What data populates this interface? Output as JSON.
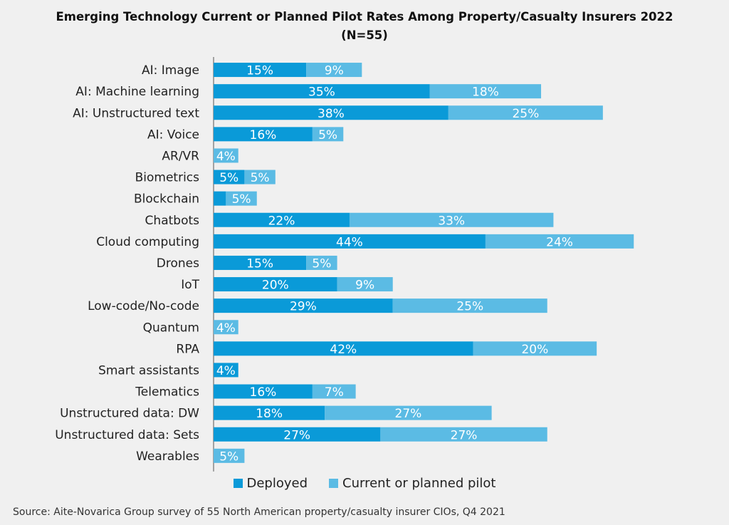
{
  "chart_data": {
    "type": "bar",
    "orientation": "horizontal",
    "stacked": true,
    "title": "Emerging Technology Current or Planned Pilot Rates Among Property/Casualty Insurers 2022",
    "subtitle": "(N=55)",
    "xlabel": "",
    "ylabel": "",
    "xlim": [
      0,
      70
    ],
    "grid": false,
    "legend_position": "bottom",
    "categories": [
      "AI: Image",
      "AI: Machine learning",
      "AI: Unstructured text",
      "AI: Voice",
      "AR/VR",
      "Biometrics",
      "Blockchain",
      "Chatbots",
      "Cloud computing",
      "Drones",
      "IoT",
      "Low-code/No-code",
      "Quantum",
      "RPA",
      "Smart assistants",
      "Telematics",
      "Unstructured data: DW",
      "Unstructured data: Sets",
      "Wearables"
    ],
    "series": [
      {
        "name": "Deployed",
        "color": "#0a9ad8",
        "values": [
          15,
          35,
          38,
          16,
          0,
          5,
          2,
          22,
          44,
          15,
          20,
          29,
          0,
          42,
          4,
          16,
          18,
          27,
          0
        ],
        "labels": [
          "15%",
          "35%",
          "38%",
          "16%",
          "",
          "5%",
          "",
          "22%",
          "44%",
          "15%",
          "20%",
          "29%",
          "",
          "42%",
          "4%",
          "16%",
          "18%",
          "27%",
          ""
        ]
      },
      {
        "name": "Current or planned pilot",
        "color": "#5bbbe4",
        "values": [
          9,
          18,
          25,
          5,
          4,
          5,
          5,
          33,
          24,
          5,
          9,
          25,
          4,
          20,
          0,
          7,
          27,
          27,
          5
        ],
        "labels": [
          "9%",
          "18%",
          "25%",
          "5%",
          "4%",
          "5%",
          "5%",
          "33%",
          "24%",
          "5%",
          "9%",
          "25%",
          "4%",
          "20%",
          "",
          "7%",
          "27%",
          "27%",
          "5%"
        ]
      }
    ]
  },
  "source": "Source: Aite-Novarica Group survey of 55 North American property/casualty insurer CIOs, Q4 2021"
}
